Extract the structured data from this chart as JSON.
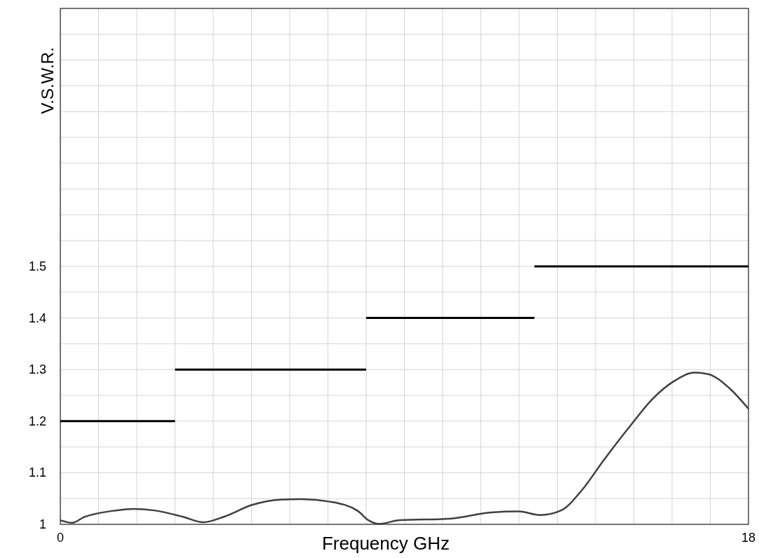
{
  "chart_data": {
    "type": "line",
    "xlabel": "Frequency GHz",
    "ylabel": "V.S.W.R.",
    "xlim": [
      0,
      18
    ],
    "ylim": [
      1,
      2
    ],
    "xticks": [
      0,
      {
        "value": 1,
        "label": null
      },
      {
        "value": 2,
        "label": null
      },
      {
        "value": 3,
        "label": null
      },
      {
        "value": 4,
        "label": null
      },
      {
        "value": 5,
        "label": null
      },
      {
        "value": 6,
        "label": null
      },
      {
        "value": 7,
        "label": null
      },
      {
        "value": 8,
        "label": null
      },
      {
        "value": 9,
        "label": null
      },
      {
        "value": 10,
        "label": null
      },
      {
        "value": 11,
        "label": null
      },
      {
        "value": 12,
        "label": null
      },
      {
        "value": 13,
        "label": null
      },
      {
        "value": 14,
        "label": null
      },
      {
        "value": 15,
        "label": null
      },
      {
        "value": 16,
        "label": null
      },
      {
        "value": 17,
        "label": null
      },
      18
    ],
    "yticks": [
      1,
      {
        "value": 1.05,
        "label": null
      },
      1.1,
      {
        "value": 1.15,
        "label": null
      },
      1.2,
      {
        "value": 1.25,
        "label": null
      },
      1.3,
      {
        "value": 1.35,
        "label": null
      },
      1.4,
      {
        "value": 1.45,
        "label": null
      },
      1.5,
      {
        "value": 1.55,
        "label": null
      },
      {
        "value": 1.6,
        "label": null
      },
      {
        "value": 1.65,
        "label": null
      },
      {
        "value": 1.7,
        "label": null
      },
      {
        "value": 1.75,
        "label": null
      },
      {
        "value": 1.8,
        "label": null
      },
      {
        "value": 1.85,
        "label": null
      },
      {
        "value": 1.9,
        "label": null
      },
      {
        "value": 1.95,
        "label": null
      },
      {
        "value": 2,
        "label": null
      }
    ],
    "grid": true,
    "series": [
      {
        "color": "#000000",
        "x": [
          0,
          3
        ],
        "values": [
          1.2,
          1.2
        ]
      },
      {
        "color": "#000000",
        "x": [
          3,
          8
        ],
        "values": [
          1.3,
          1.3
        ]
      },
      {
        "color": "#000000",
        "x": [
          8,
          12.4
        ],
        "values": [
          1.4,
          1.4
        ]
      },
      {
        "color": "#000000",
        "x": [
          12.4,
          18
        ],
        "values": [
          1.5,
          1.5
        ]
      },
      {
        "color": "#404040",
        "x": [
          0,
          0.31,
          0.62,
          1.36,
          1.91,
          2.46,
          3.19,
          3.74,
          4.29,
          5.03,
          5.76,
          6.31,
          7.05,
          7.78,
          8.06,
          8.33,
          8.88,
          10.17,
          11.27,
          12.0,
          12.55,
          13.1,
          13.65,
          14.2,
          14.94,
          15.49,
          16.04,
          16.59,
          16.95,
          17.5,
          18
        ],
        "values": [
          1.008,
          1.003,
          1.014,
          1.026,
          1.03,
          1.027,
          1.015,
          1.004,
          1.015,
          1.038,
          1.048,
          1.049,
          1.044,
          1.026,
          1.008,
          1.001,
          1.008,
          1.011,
          1.023,
          1.025,
          1.018,
          1.027,
          1.067,
          1.123,
          1.194,
          1.243,
          1.277,
          1.294,
          1.291,
          1.264,
          1.224
        ]
      }
    ]
  }
}
